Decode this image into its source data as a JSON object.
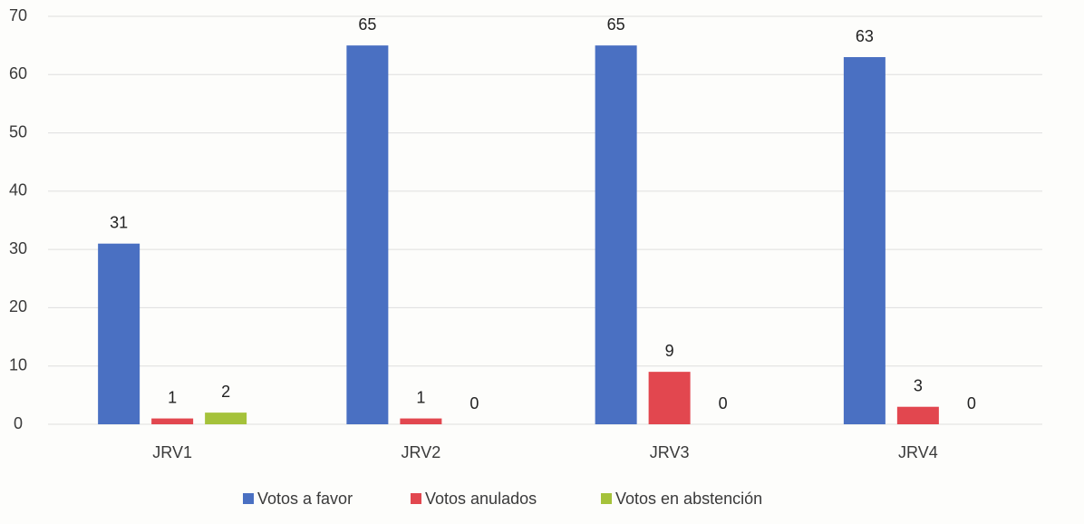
{
  "chart_data": {
    "type": "bar",
    "categories": [
      "JRV1",
      "JRV2",
      "JRV3",
      "JRV4"
    ],
    "series": [
      {
        "name": "Votos a favor",
        "color": "#4a70c2",
        "values": [
          31,
          65,
          65,
          63
        ]
      },
      {
        "name": "Votos anulados",
        "color": "#e2474f",
        "values": [
          1,
          1,
          9,
          3
        ]
      },
      {
        "name": "Votos en abstención",
        "color": "#a5c23a",
        "values": [
          2,
          0,
          0,
          0
        ]
      }
    ],
    "ylim": [
      0,
      70
    ],
    "yticks": [
      0,
      10,
      20,
      30,
      40,
      50,
      60,
      70
    ],
    "grid": true,
    "legend": "bottom"
  }
}
